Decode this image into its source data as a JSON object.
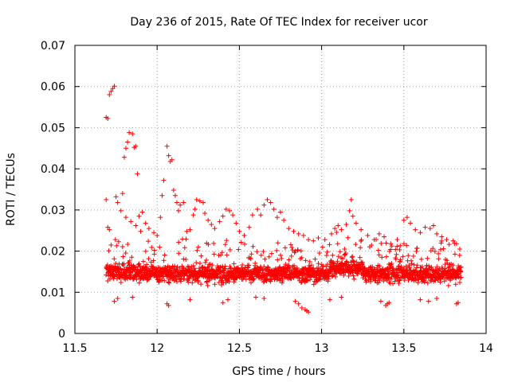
{
  "chart_data": {
    "type": "scatter",
    "title": "Day 236 of 2015, Rate Of TEC Index for receiver ucor",
    "xlabel": "GPS time / hours",
    "ylabel": "ROTI / TECUs",
    "xlim": [
      11.5,
      14
    ],
    "ylim": [
      0,
      0.07
    ],
    "xticks": [
      11.5,
      12,
      12.5,
      13,
      13.5,
      14
    ],
    "xtick_labels": [
      "11.5",
      "12",
      "12.5",
      "13",
      "13.5",
      "14"
    ],
    "yticks": [
      0,
      0.01,
      0.02,
      0.03,
      0.04,
      0.05,
      0.06,
      0.07
    ],
    "ytick_labels": [
      "0",
      "0.01",
      "0.02",
      "0.03",
      "0.04",
      "0.05",
      "0.06",
      "0.07"
    ],
    "grid": true,
    "marker": "plus",
    "color": "#ff0000",
    "series": [
      {
        "name": "ROTI",
        "points": [
          [
            11.69,
            0.0525
          ],
          [
            11.7,
            0.0522
          ],
          [
            11.71,
            0.058
          ],
          [
            11.72,
            0.0588
          ],
          [
            11.73,
            0.0595
          ],
          [
            11.74,
            0.0601
          ],
          [
            11.69,
            0.0325
          ],
          [
            11.7,
            0.0258
          ],
          [
            11.71,
            0.0252
          ],
          [
            11.72,
            0.0215
          ],
          [
            11.75,
            0.0332
          ],
          [
            11.76,
            0.0318
          ],
          [
            11.79,
            0.034
          ],
          [
            11.8,
            0.0428
          ],
          [
            11.81,
            0.045
          ],
          [
            11.82,
            0.0465
          ],
          [
            11.83,
            0.0488
          ],
          [
            11.85,
            0.0485
          ],
          [
            11.86,
            0.0452
          ],
          [
            11.87,
            0.0455
          ],
          [
            11.88,
            0.0388
          ],
          [
            11.78,
            0.0298
          ],
          [
            11.81,
            0.0282
          ],
          [
            11.84,
            0.0272
          ],
          [
            11.87,
            0.0262
          ],
          [
            11.89,
            0.0285
          ],
          [
            11.91,
            0.0295
          ],
          [
            11.93,
            0.0268
          ],
          [
            11.95,
            0.0255
          ],
          [
            11.9,
            0.0248
          ],
          [
            11.98,
            0.0245
          ],
          [
            12.0,
            0.0238
          ],
          [
            12.02,
            0.0282
          ],
          [
            12.03,
            0.0335
          ],
          [
            12.04,
            0.0372
          ],
          [
            12.06,
            0.0455
          ],
          [
            12.07,
            0.0432
          ],
          [
            12.08,
            0.0418
          ],
          [
            12.09,
            0.0422
          ],
          [
            12.1,
            0.0348
          ],
          [
            12.11,
            0.0335
          ],
          [
            12.12,
            0.0318
          ],
          [
            12.14,
            0.0312
          ],
          [
            12.13,
            0.0298
          ],
          [
            12.16,
            0.0318
          ],
          [
            12.18,
            0.0248
          ],
          [
            12.2,
            0.0252
          ],
          [
            12.22,
            0.0288
          ],
          [
            12.23,
            0.0302
          ],
          [
            12.24,
            0.0325
          ],
          [
            12.26,
            0.0322
          ],
          [
            12.28,
            0.0318
          ],
          [
            12.29,
            0.0292
          ],
          [
            12.31,
            0.0275
          ],
          [
            12.33,
            0.0265
          ],
          [
            12.35,
            0.0255
          ],
          [
            12.38,
            0.0272
          ],
          [
            12.4,
            0.0285
          ],
          [
            12.42,
            0.0302
          ],
          [
            12.44,
            0.0298
          ],
          [
            12.46,
            0.0288
          ],
          [
            12.48,
            0.0268
          ],
          [
            12.5,
            0.0248
          ],
          [
            12.53,
            0.0238
          ],
          [
            12.56,
            0.0258
          ],
          [
            12.58,
            0.0288
          ],
          [
            12.61,
            0.0302
          ],
          [
            12.63,
            0.0288
          ],
          [
            12.65,
            0.0312
          ],
          [
            12.67,
            0.0325
          ],
          [
            12.69,
            0.0318
          ],
          [
            12.71,
            0.0302
          ],
          [
            12.73,
            0.0282
          ],
          [
            12.75,
            0.0295
          ],
          [
            12.77,
            0.0275
          ],
          [
            12.8,
            0.0255
          ],
          [
            12.83,
            0.0248
          ],
          [
            12.86,
            0.0242
          ],
          [
            12.89,
            0.0238
          ],
          [
            12.92,
            0.0228
          ],
          [
            12.95,
            0.0225
          ],
          [
            12.98,
            0.0232
          ],
          [
            13.02,
            0.0228
          ],
          [
            13.06,
            0.0242
          ],
          [
            13.08,
            0.0255
          ],
          [
            13.1,
            0.0262
          ],
          [
            13.12,
            0.0252
          ],
          [
            13.15,
            0.0265
          ],
          [
            13.17,
            0.0298
          ],
          [
            13.18,
            0.0325
          ],
          [
            13.19,
            0.0285
          ],
          [
            13.21,
            0.0268
          ],
          [
            13.24,
            0.0252
          ],
          [
            13.28,
            0.0238
          ],
          [
            13.32,
            0.0228
          ],
          [
            13.35,
            0.0242
          ],
          [
            13.38,
            0.0235
          ],
          [
            13.42,
            0.0218
          ],
          [
            13.46,
            0.0228
          ],
          [
            13.5,
            0.0275
          ],
          [
            13.52,
            0.0282
          ],
          [
            13.54,
            0.0268
          ],
          [
            13.57,
            0.0252
          ],
          [
            13.6,
            0.0245
          ],
          [
            13.63,
            0.0258
          ],
          [
            13.66,
            0.0255
          ],
          [
            13.68,
            0.0262
          ],
          [
            13.7,
            0.0242
          ],
          [
            13.73,
            0.0235
          ],
          [
            13.76,
            0.0228
          ],
          [
            13.8,
            0.0225
          ],
          [
            13.82,
            0.0218
          ],
          [
            13.84,
            0.0205
          ],
          [
            12.9,
            0.0058
          ],
          [
            12.91,
            0.0055
          ],
          [
            12.92,
            0.0052
          ],
          [
            12.88,
            0.0062
          ],
          [
            12.86,
            0.0072
          ],
          [
            12.84,
            0.0078
          ],
          [
            13.4,
            0.0072
          ],
          [
            13.39,
            0.0068
          ],
          [
            13.41,
            0.0075
          ],
          [
            13.36,
            0.0078
          ],
          [
            11.74,
            0.0078
          ],
          [
            11.76,
            0.0085
          ],
          [
            11.85,
            0.0088
          ],
          [
            12.06,
            0.0072
          ],
          [
            12.07,
            0.0068
          ],
          [
            12.2,
            0.0082
          ],
          [
            12.4,
            0.0075
          ],
          [
            12.43,
            0.0082
          ],
          [
            12.6,
            0.0088
          ],
          [
            12.65,
            0.0085
          ],
          [
            13.82,
            0.0072
          ],
          [
            13.83,
            0.0075
          ],
          [
            13.05,
            0.0082
          ],
          [
            13.12,
            0.0088
          ],
          [
            13.6,
            0.0082
          ],
          [
            13.65,
            0.0078
          ],
          [
            13.7,
            0.0085
          ]
        ]
      }
    ]
  }
}
